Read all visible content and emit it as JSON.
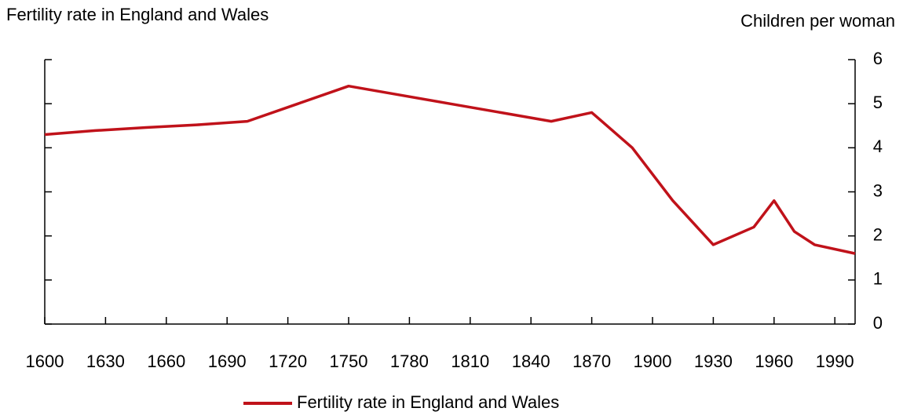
{
  "chart_data": {
    "type": "line",
    "title": "Fertility rate in England and Wales",
    "y_axis_label": "Children per woman",
    "x": [
      1600,
      1625,
      1650,
      1675,
      1700,
      1725,
      1750,
      1775,
      1800,
      1825,
      1850,
      1870,
      1890,
      1910,
      1930,
      1950,
      1960,
      1970,
      1980,
      2000
    ],
    "series": [
      {
        "name": "Fertility rate in England and Wales",
        "color": "#c0121a",
        "values": [
          4.3,
          4.39,
          4.46,
          4.52,
          4.6,
          5.0,
          5.4,
          5.2,
          5.0,
          4.8,
          4.6,
          4.8,
          4.0,
          2.8,
          1.8,
          2.2,
          2.8,
          2.1,
          1.8,
          1.6
        ]
      }
    ],
    "xlim": [
      1600,
      2000
    ],
    "xticks": [
      1600,
      1630,
      1660,
      1690,
      1720,
      1750,
      1780,
      1810,
      1840,
      1870,
      1900,
      1930,
      1960,
      1990
    ],
    "ylim": [
      0,
      6
    ],
    "yticks": [
      0,
      1,
      2,
      3,
      4,
      5,
      6
    ],
    "grid": false,
    "legend": "bottom"
  }
}
